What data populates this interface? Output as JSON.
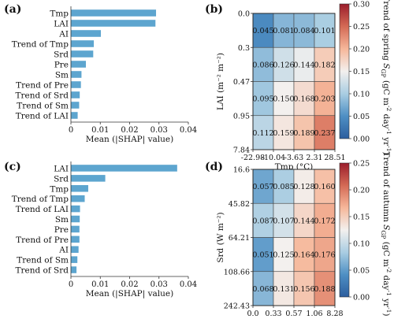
{
  "panels": [
    {
      "id": "a",
      "label": "(a)"
    },
    {
      "id": "b",
      "label": "(b)"
    },
    {
      "id": "c",
      "label": "(c)"
    },
    {
      "id": "d",
      "label": "(d)"
    }
  ],
  "colorbar_colors": [
    "#2c5e9e",
    "#4e8fc4",
    "#a9cde2",
    "#f3f0ee",
    "#f6b79a",
    "#d46a55",
    "#9b1d2b"
  ],
  "chart_data": [
    {
      "panel": "a",
      "type": "bar",
      "orientation": "horizontal",
      "categories": [
        "Tmp",
        "LAI",
        "AI",
        "Trend of Tmp",
        "Srd",
        "Pre",
        "Sm",
        "Trend of Pre",
        "Trend of Srd",
        "Trend of Sm",
        "Trend of LAI"
      ],
      "values": [
        0.029,
        0.0288,
        0.0102,
        0.0078,
        0.0076,
        0.0051,
        0.0036,
        0.0034,
        0.003,
        0.0028,
        0.0023
      ],
      "xlabel": "Mean (|SHAP| value)",
      "xlim": [
        0,
        0.04
      ],
      "xticks": [
        "0",
        "0.01",
        "0.02",
        "0.03",
        "0.04"
      ],
      "color": "#5da5cf"
    },
    {
      "panel": "b",
      "type": "heatmap",
      "xlabel": "Tmp (°C)",
      "ylabel": "LAI (m⁻² m⁻²)",
      "x_ticks": [
        "-22.98",
        "-10.04",
        "-3.63",
        "2.31",
        "28.51"
      ],
      "y_ticks": [
        "0.0",
        "0.3",
        "0.47",
        "0.95",
        "7.84"
      ],
      "values": [
        [
          "0.045",
          "0.081",
          "0.084",
          "0.101"
        ],
        [
          "0.086",
          "0.126",
          "0.144",
          "0.182"
        ],
        [
          "0.095",
          "0.150",
          "0.168",
          "0.203"
        ],
        [
          "0.112",
          "0.159",
          "0.189",
          "0.237"
        ]
      ],
      "colorbar": {
        "label": "Trend of spring S_GP (gC m⁻² day⁻¹ yr⁻¹)",
        "label_parts": [
          "Trend of spring ",
          "S",
          "GP",
          " (gC m",
          "-2",
          " day",
          "-1",
          " yr",
          "-1",
          ")"
        ],
        "range": [
          0.0,
          0.3
        ],
        "ticks": [
          "0.00",
          "0.05",
          "0.10",
          "0.15",
          "0.20",
          "0.25",
          "0.30"
        ]
      }
    },
    {
      "panel": "c",
      "type": "bar",
      "orientation": "horizontal",
      "categories": [
        "LAI",
        "Srd",
        "Tmp",
        "Trend of Tmp",
        "Trend of LAI",
        "Sm",
        "Pre",
        "Trend of Pre",
        "AI",
        "Trend of Sm",
        "Trend of Srd"
      ],
      "values": [
        0.0362,
        0.0117,
        0.0059,
        0.0047,
        0.0031,
        0.003,
        0.0029,
        0.0029,
        0.0026,
        0.0022,
        0.0019
      ],
      "xlabel": "Mean (|SHAP| value)",
      "xlim": [
        0,
        0.04
      ],
      "xticks": [
        "0",
        "0.01",
        "0.02",
        "0.03",
        "0.04"
      ],
      "color": "#5da5cf"
    },
    {
      "panel": "d",
      "type": "heatmap",
      "xlabel": "LAI (m⁻² m⁻²)",
      "ylabel": "Srd (W m⁻²)",
      "x_ticks": [
        "0.0",
        "0.33",
        "0.57",
        "1.06",
        "8.28"
      ],
      "y_ticks": [
        "16.6",
        "45.82",
        "64.21",
        "108.66",
        "242.43"
      ],
      "values": [
        [
          "0.057",
          "0.085",
          "0.128",
          "0.160"
        ],
        [
          "0.087",
          "0.107",
          "0.144",
          "0.172"
        ],
        [
          "0.051",
          "0.125",
          "0.164",
          "0.176"
        ],
        [
          "0.068",
          "0.131",
          "0.156",
          "0.188"
        ]
      ],
      "colorbar": {
        "label": "Trend of autumn S_GP (gC m⁻² day⁻¹ yr⁻¹)",
        "label_parts": [
          "Trend of autumn ",
          "S",
          "GP",
          " (gC m",
          "-2",
          " day",
          "-1",
          " yr",
          "-1",
          ")"
        ],
        "range": [
          0.0,
          0.25
        ],
        "ticks": [
          "0.00",
          "0.05",
          "0.10",
          "0.15",
          "0.20",
          "0.25"
        ]
      }
    }
  ]
}
